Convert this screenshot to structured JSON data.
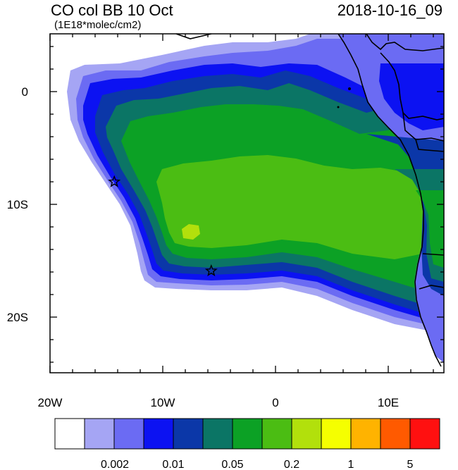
{
  "title": "CO col BB 10 Oct",
  "subtitle": "(1E18*molec/cm2)",
  "timestamp": "2018-10-16_09",
  "axes": {
    "x_ticks": [
      "20W",
      "10W",
      "0",
      "10E"
    ],
    "y_ticks": [
      "0",
      "10S",
      "20S"
    ]
  },
  "colorbar": {
    "colors": [
      "#ffffff",
      "#a5a5f4",
      "#6b6bf3",
      "#0c12f2",
      "#0b37a8",
      "#0b7565",
      "#0ca125",
      "#4bbd13",
      "#b2e00c",
      "#f5ff00",
      "#ffb300",
      "#ff5a00",
      "#ff1010"
    ],
    "labels": [
      "0.002",
      "0.01",
      "0.05",
      "0.2",
      "1",
      "5"
    ]
  },
  "markers": [
    {
      "name": "star-marker-west",
      "lon": -14.3,
      "lat": -8.0
    },
    {
      "name": "star-marker-south",
      "lon": -5.7,
      "lat": -15.9
    }
  ]
}
